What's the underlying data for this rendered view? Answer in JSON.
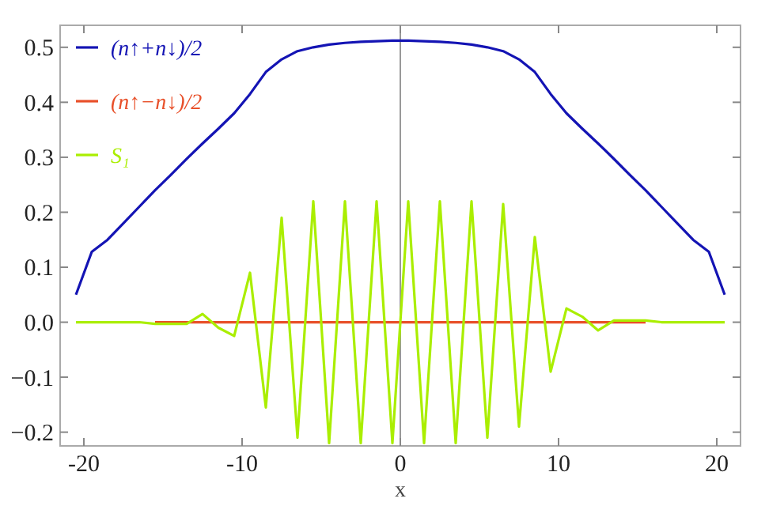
{
  "chart_data": {
    "type": "line",
    "xlabel": "x",
    "x": [
      -20.5,
      -19.5,
      -18.5,
      -17.5,
      -16.5,
      -15.5,
      -14.5,
      -13.5,
      -12.5,
      -11.5,
      -10.5,
      -9.5,
      -8.5,
      -7.5,
      -6.5,
      -5.5,
      -4.5,
      -3.5,
      -2.5,
      -1.5,
      -0.5,
      0.5,
      1.5,
      2.5,
      3.5,
      4.5,
      5.5,
      6.5,
      7.5,
      8.5,
      9.5,
      10.5,
      11.5,
      12.5,
      13.5,
      14.5,
      15.5,
      16.5,
      17.5,
      18.5,
      19.5,
      20.5
    ],
    "series": [
      {
        "name": "(n↑+n↓)/2",
        "color": "#1414b4",
        "values": [
          0.05,
          0.128,
          0.15,
          0.18,
          0.21,
          0.24,
          0.268,
          0.297,
          0.325,
          0.352,
          0.38,
          0.415,
          0.455,
          0.478,
          0.493,
          0.5,
          0.505,
          0.508,
          0.51,
          0.511,
          0.512,
          0.512,
          0.511,
          0.51,
          0.508,
          0.505,
          0.5,
          0.493,
          0.478,
          0.455,
          0.415,
          0.38,
          0.352,
          0.325,
          0.297,
          0.268,
          0.24,
          0.21,
          0.18,
          0.15,
          0.128,
          0.05
        ]
      },
      {
        "name": "(n↑−n↓)/2",
        "color": "#e8502a",
        "values": [
          null,
          null,
          null,
          null,
          null,
          0,
          0,
          0,
          0,
          0,
          0,
          0,
          0,
          0,
          0,
          0,
          0,
          0,
          0,
          0,
          0,
          0,
          0,
          0,
          0,
          0,
          0,
          0,
          0,
          0,
          0,
          0,
          0,
          0,
          0,
          0,
          0,
          null,
          null,
          null,
          null,
          null
        ]
      },
      {
        "name": "S₁",
        "color": "#aaee00",
        "values": [
          0,
          0,
          0,
          0,
          0,
          -0.003,
          -0.003,
          -0.003,
          0.015,
          -0.01,
          -0.025,
          0.09,
          -0.155,
          0.19,
          -0.21,
          0.22,
          -0.22,
          0.22,
          -0.22,
          0.22,
          -0.22,
          0.22,
          -0.22,
          0.22,
          -0.22,
          0.22,
          -0.21,
          0.215,
          -0.19,
          0.155,
          -0.09,
          0.025,
          0.01,
          -0.015,
          0.003,
          0.003,
          0.003,
          0,
          0,
          0,
          0,
          0
        ]
      }
    ],
    "xlim": [
      -21.5,
      21.5
    ],
    "ylim": [
      -0.225,
      0.54
    ],
    "xticks": [
      -20,
      -10,
      0,
      10,
      20
    ],
    "yticks": [
      {
        "value": -0.2,
        "label": "−0.2"
      },
      {
        "value": -0.1,
        "label": "−0.1"
      },
      {
        "value": 0,
        "label": "0.0"
      },
      0.1,
      0.2,
      0.3,
      0.4,
      0.5
    ],
    "ref_lines": [
      {
        "axis": "x",
        "value": 0,
        "color": "#999999"
      }
    ],
    "legend": "top left",
    "grid": false
  }
}
